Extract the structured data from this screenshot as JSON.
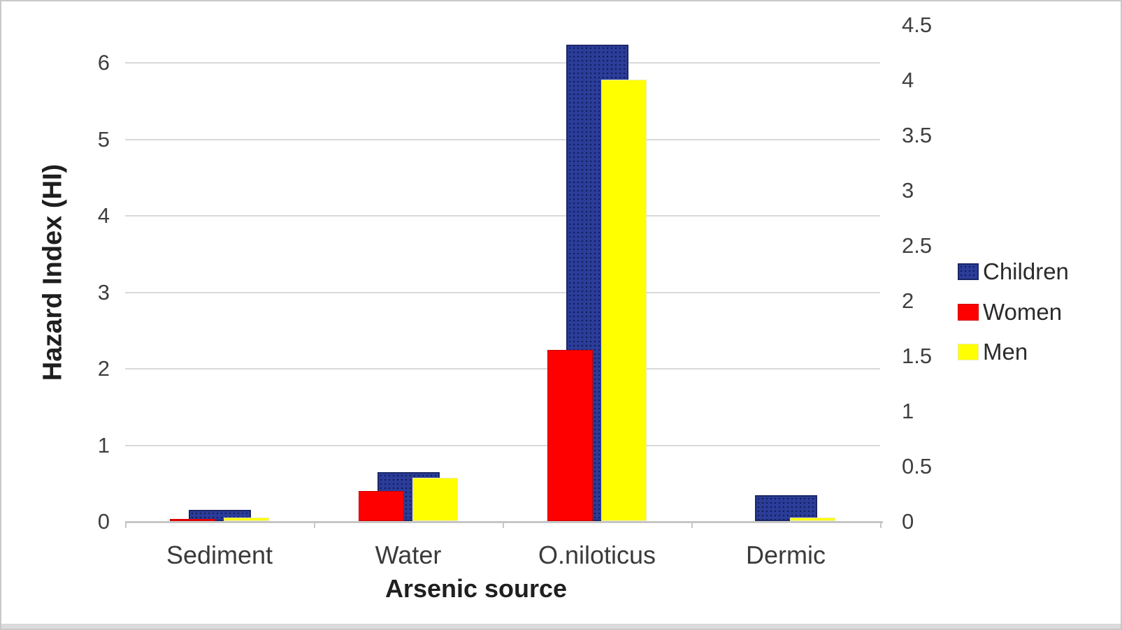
{
  "chart_data": {
    "type": "bar",
    "title": "",
    "xlabel": "Arsenic source",
    "ylabel_left": "Hazard Index (HI)",
    "categories": [
      "Sediment",
      "Water",
      "O.niloticus",
      "Dermic"
    ],
    "series": [
      {
        "name": "Children",
        "axis": "left",
        "color": "#2b3d99",
        "values": [
          0.15,
          0.64,
          6.23,
          0.34
        ]
      },
      {
        "name": "Women",
        "axis": "right",
        "color": "#ff0000",
        "values": [
          0.02,
          0.27,
          1.55,
          0
        ]
      },
      {
        "name": "Men",
        "axis": "right",
        "color": "#ffff00",
        "values": [
          0.03,
          0.39,
          4.0,
          0.03
        ]
      }
    ],
    "left_axis": {
      "ticks": [
        0,
        1,
        2,
        3,
        4,
        5,
        6
      ],
      "range": [
        0,
        6.5
      ]
    },
    "right_axis": {
      "ticks": [
        0,
        0.5,
        1,
        1.5,
        2,
        2.5,
        3,
        3.5,
        4,
        4.5
      ],
      "range": [
        0,
        4.5
      ]
    },
    "legend": {
      "position": "right",
      "entries": [
        "Children",
        "Women",
        "Men"
      ]
    },
    "grid": true
  },
  "colors": {
    "children_fill": "#2b3d99",
    "children_border": "#1b2766",
    "women_fill": "#ff0000",
    "men_fill": "#ffff00",
    "gridline": "#d9d9d9",
    "axis_line": "#c6c6c6",
    "tick_text": "#3f3f3f",
    "title_text": "#1f1f1f"
  }
}
